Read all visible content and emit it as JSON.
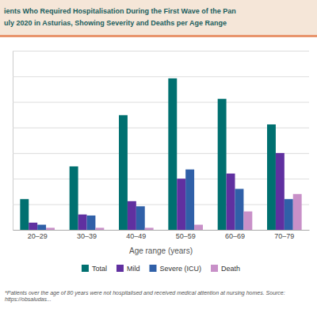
{
  "chart_data": {
    "type": "bar",
    "title": "ients Who Required Hospitalisation During the First Wave of the Pan",
    "subtitle": "uly 2020 in Asturias, Showing Severity and Deaths per Age Range",
    "x_label": "Age range (years)",
    "categories": [
      "20–29",
      "30–39",
      "40–49",
      "50–59",
      "60–69",
      "70–79"
    ],
    "series": [
      {
        "name": "Total",
        "color": "#007070",
        "values": [
          30,
          62,
          112,
          148,
          128,
          103
        ]
      },
      {
        "name": "Mild",
        "color": "#6030a0",
        "values": [
          7,
          15,
          28,
          50,
          55,
          75
        ]
      },
      {
        "name": "Severe (ICU)",
        "color": "#3060a8",
        "values": [
          5,
          14,
          23,
          59,
          40,
          30
        ]
      },
      {
        "name": "Death",
        "color": "#c890c8",
        "values": [
          2,
          2,
          2,
          5,
          18,
          35
        ]
      }
    ],
    "ylim": [
      0,
      175
    ],
    "yticks": [
      0,
      25,
      50,
      75,
      100,
      125,
      150,
      175
    ],
    "grid": true,
    "tick_labels": "x",
    "legend": "bottom",
    "annotations": [
      "*Patients over the age of 80 years were not hospitalised and received medical attention at nursing homes. Source: https://obsaludas..."
    ]
  }
}
